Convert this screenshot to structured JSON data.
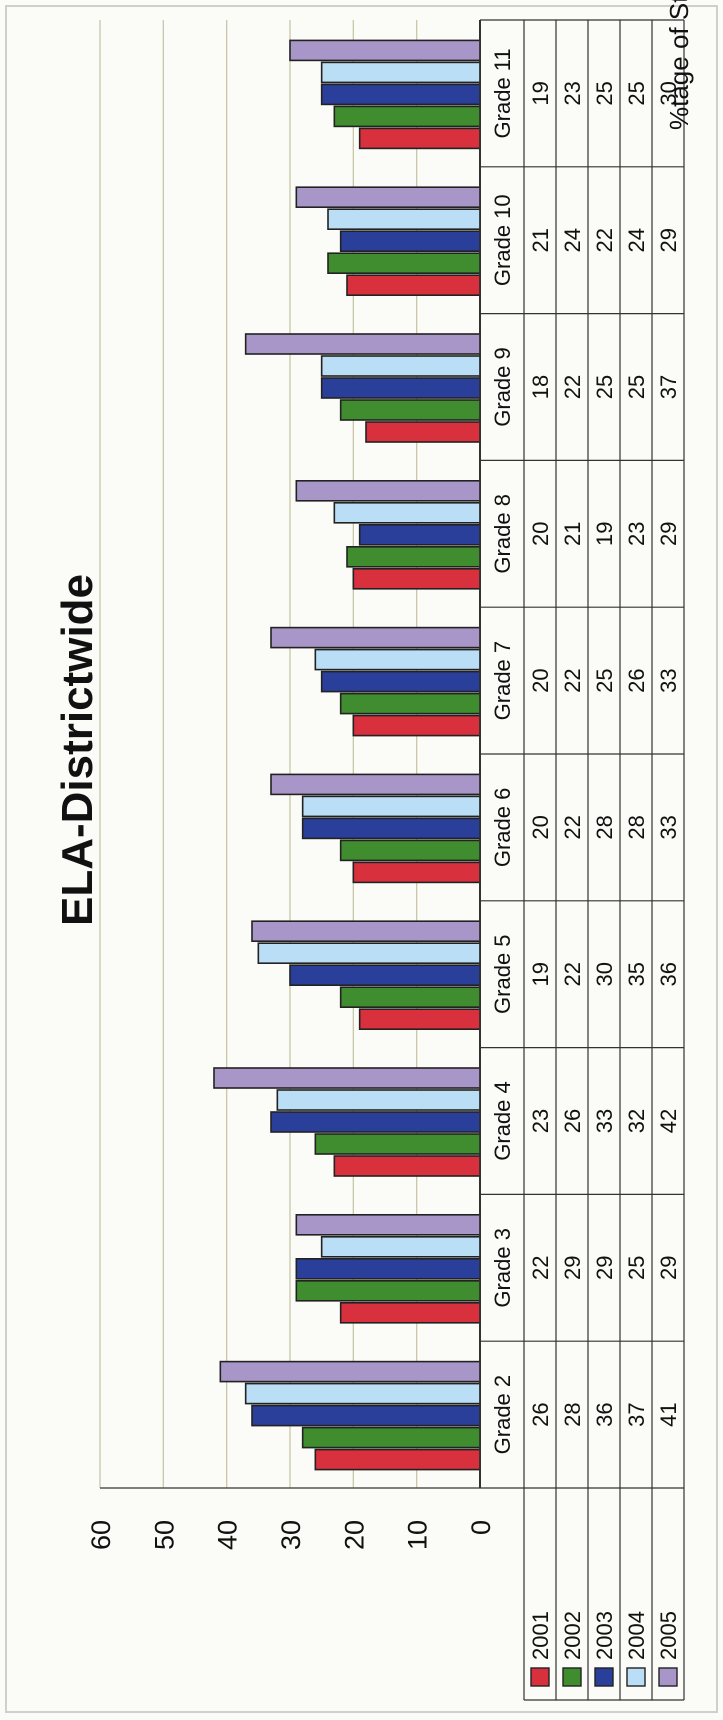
{
  "chart_data": {
    "type": "bar",
    "title": "ELA-Districtwide",
    "xlabel": "",
    "ylabel": "%tage of Students",
    "ylim": [
      0,
      60
    ],
    "yticks": [
      0,
      10,
      20,
      30,
      40,
      50,
      60
    ],
    "grid": true,
    "legend": "data-table",
    "categories": [
      "Grade 2",
      "Grade 3",
      "Grade 4",
      "Grade 5",
      "Grade 6",
      "Grade 7",
      "Grade 8",
      "Grade 9",
      "Grade 10",
      "Grade 11"
    ],
    "series": [
      {
        "name": "2001",
        "color": "#d9303e",
        "values": [
          26,
          22,
          23,
          19,
          20,
          20,
          20,
          18,
          21,
          19
        ]
      },
      {
        "name": "2002",
        "color": "#3f8d2e",
        "values": [
          28,
          29,
          26,
          22,
          22,
          22,
          21,
          22,
          24,
          23
        ]
      },
      {
        "name": "2003",
        "color": "#2a3f9a",
        "values": [
          36,
          29,
          33,
          30,
          28,
          25,
          19,
          25,
          22,
          25
        ]
      },
      {
        "name": "2004",
        "color": "#b9def5",
        "values": [
          37,
          25,
          32,
          35,
          28,
          26,
          23,
          25,
          24,
          25
        ]
      },
      {
        "name": "2005",
        "color": "#a996c8",
        "values": [
          41,
          29,
          42,
          36,
          33,
          33,
          29,
          37,
          29,
          30
        ]
      }
    ]
  }
}
